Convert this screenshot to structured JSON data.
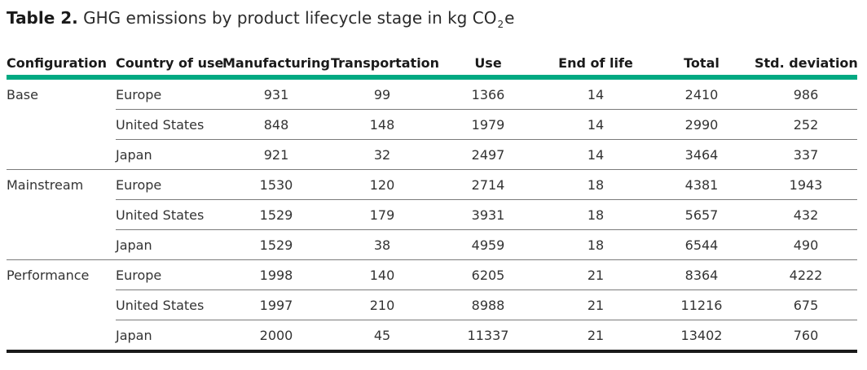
{
  "caption": {
    "label": "Table 2.",
    "text_before": " GHG emissions by product lifecycle stage in kg CO",
    "subscript": "2",
    "text_after": "e"
  },
  "table": {
    "headers": [
      "Configuration",
      "Country of use",
      "Manufacturing",
      "Transportation",
      "Use",
      "End of life",
      "Total",
      "Std. deviation"
    ],
    "rows": [
      {
        "configuration": "Base",
        "country": "Europe",
        "values": [
          "931",
          "99",
          "1366",
          "14",
          "2410",
          "986"
        ]
      },
      {
        "configuration": "",
        "country": "United States",
        "values": [
          "848",
          "148",
          "1979",
          "14",
          "2990",
          "252"
        ]
      },
      {
        "configuration": "",
        "country": "Japan",
        "values": [
          "921",
          "32",
          "2497",
          "14",
          "3464",
          "337"
        ]
      },
      {
        "configuration": "Mainstream",
        "country": "Europe",
        "values": [
          "1530",
          "120",
          "2714",
          "18",
          "4381",
          "1943"
        ]
      },
      {
        "configuration": "",
        "country": "United States",
        "values": [
          "1529",
          "179",
          "3931",
          "18",
          "5657",
          "432"
        ]
      },
      {
        "configuration": "",
        "country": "Japan",
        "values": [
          "1529",
          "38",
          "4959",
          "18",
          "6544",
          "490"
        ]
      },
      {
        "configuration": "Performance",
        "country": "Europe",
        "values": [
          "1998",
          "140",
          "6205",
          "21",
          "8364",
          "4222"
        ]
      },
      {
        "configuration": "",
        "country": "United States",
        "values": [
          "1997",
          "210",
          "8988",
          "21",
          "11216",
          "675"
        ]
      },
      {
        "configuration": "",
        "country": "Japan",
        "values": [
          "2000",
          "45",
          "11337",
          "21",
          "13402",
          "760"
        ]
      }
    ]
  },
  "colors": {
    "header_rule": "#01a982",
    "row_rule": "#7a7a7a",
    "end_rule": "#1a1a1a"
  }
}
